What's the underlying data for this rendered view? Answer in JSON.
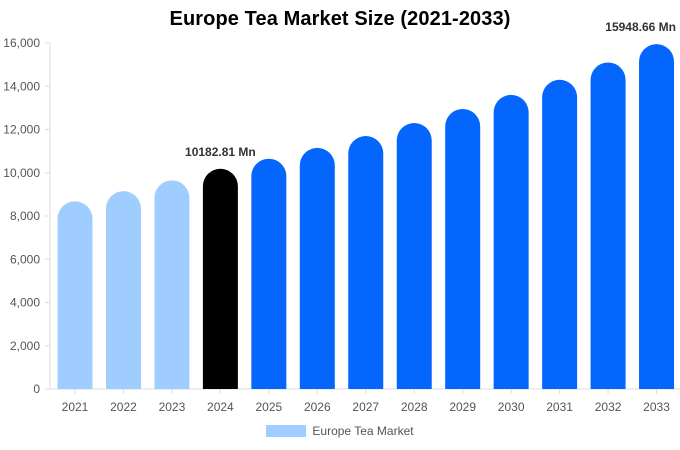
{
  "chart_data": {
    "type": "bar",
    "title": "Europe Tea Market Size (2021-2033)",
    "categories": [
      "2021",
      "2022",
      "2023",
      "2024",
      "2025",
      "2026",
      "2027",
      "2028",
      "2029",
      "2030",
      "2031",
      "2032",
      "2033"
    ],
    "series": [
      {
        "name": "Europe Tea Market",
        "values": [
          8680,
          9150,
          9650,
          10182.81,
          10650,
          11150,
          11700,
          12300,
          12950,
          13600,
          14300,
          15100,
          15948.66
        ]
      }
    ],
    "bar_colors": [
      "#a0cdff",
      "#a0cdff",
      "#a0cdff",
      "#000000",
      "#0566fe",
      "#0566fe",
      "#0566fe",
      "#0566fe",
      "#0566fe",
      "#0566fe",
      "#0566fe",
      "#0566fe",
      "#0566fe"
    ],
    "ylim": [
      0,
      16000
    ],
    "y_ticks": [
      "0",
      "2,000",
      "4,000",
      "6,000",
      "8,000",
      "10,000",
      "12,000",
      "14,000",
      "16,000"
    ],
    "data_labels": [
      {
        "index": 3,
        "text": "10182.81 Mn"
      },
      {
        "index": 12,
        "text": "15948.66 Mn"
      }
    ],
    "xlabel": "",
    "ylabel": "",
    "grid": false,
    "legend_position": "bottom",
    "legend_color": "#a0cdff"
  }
}
